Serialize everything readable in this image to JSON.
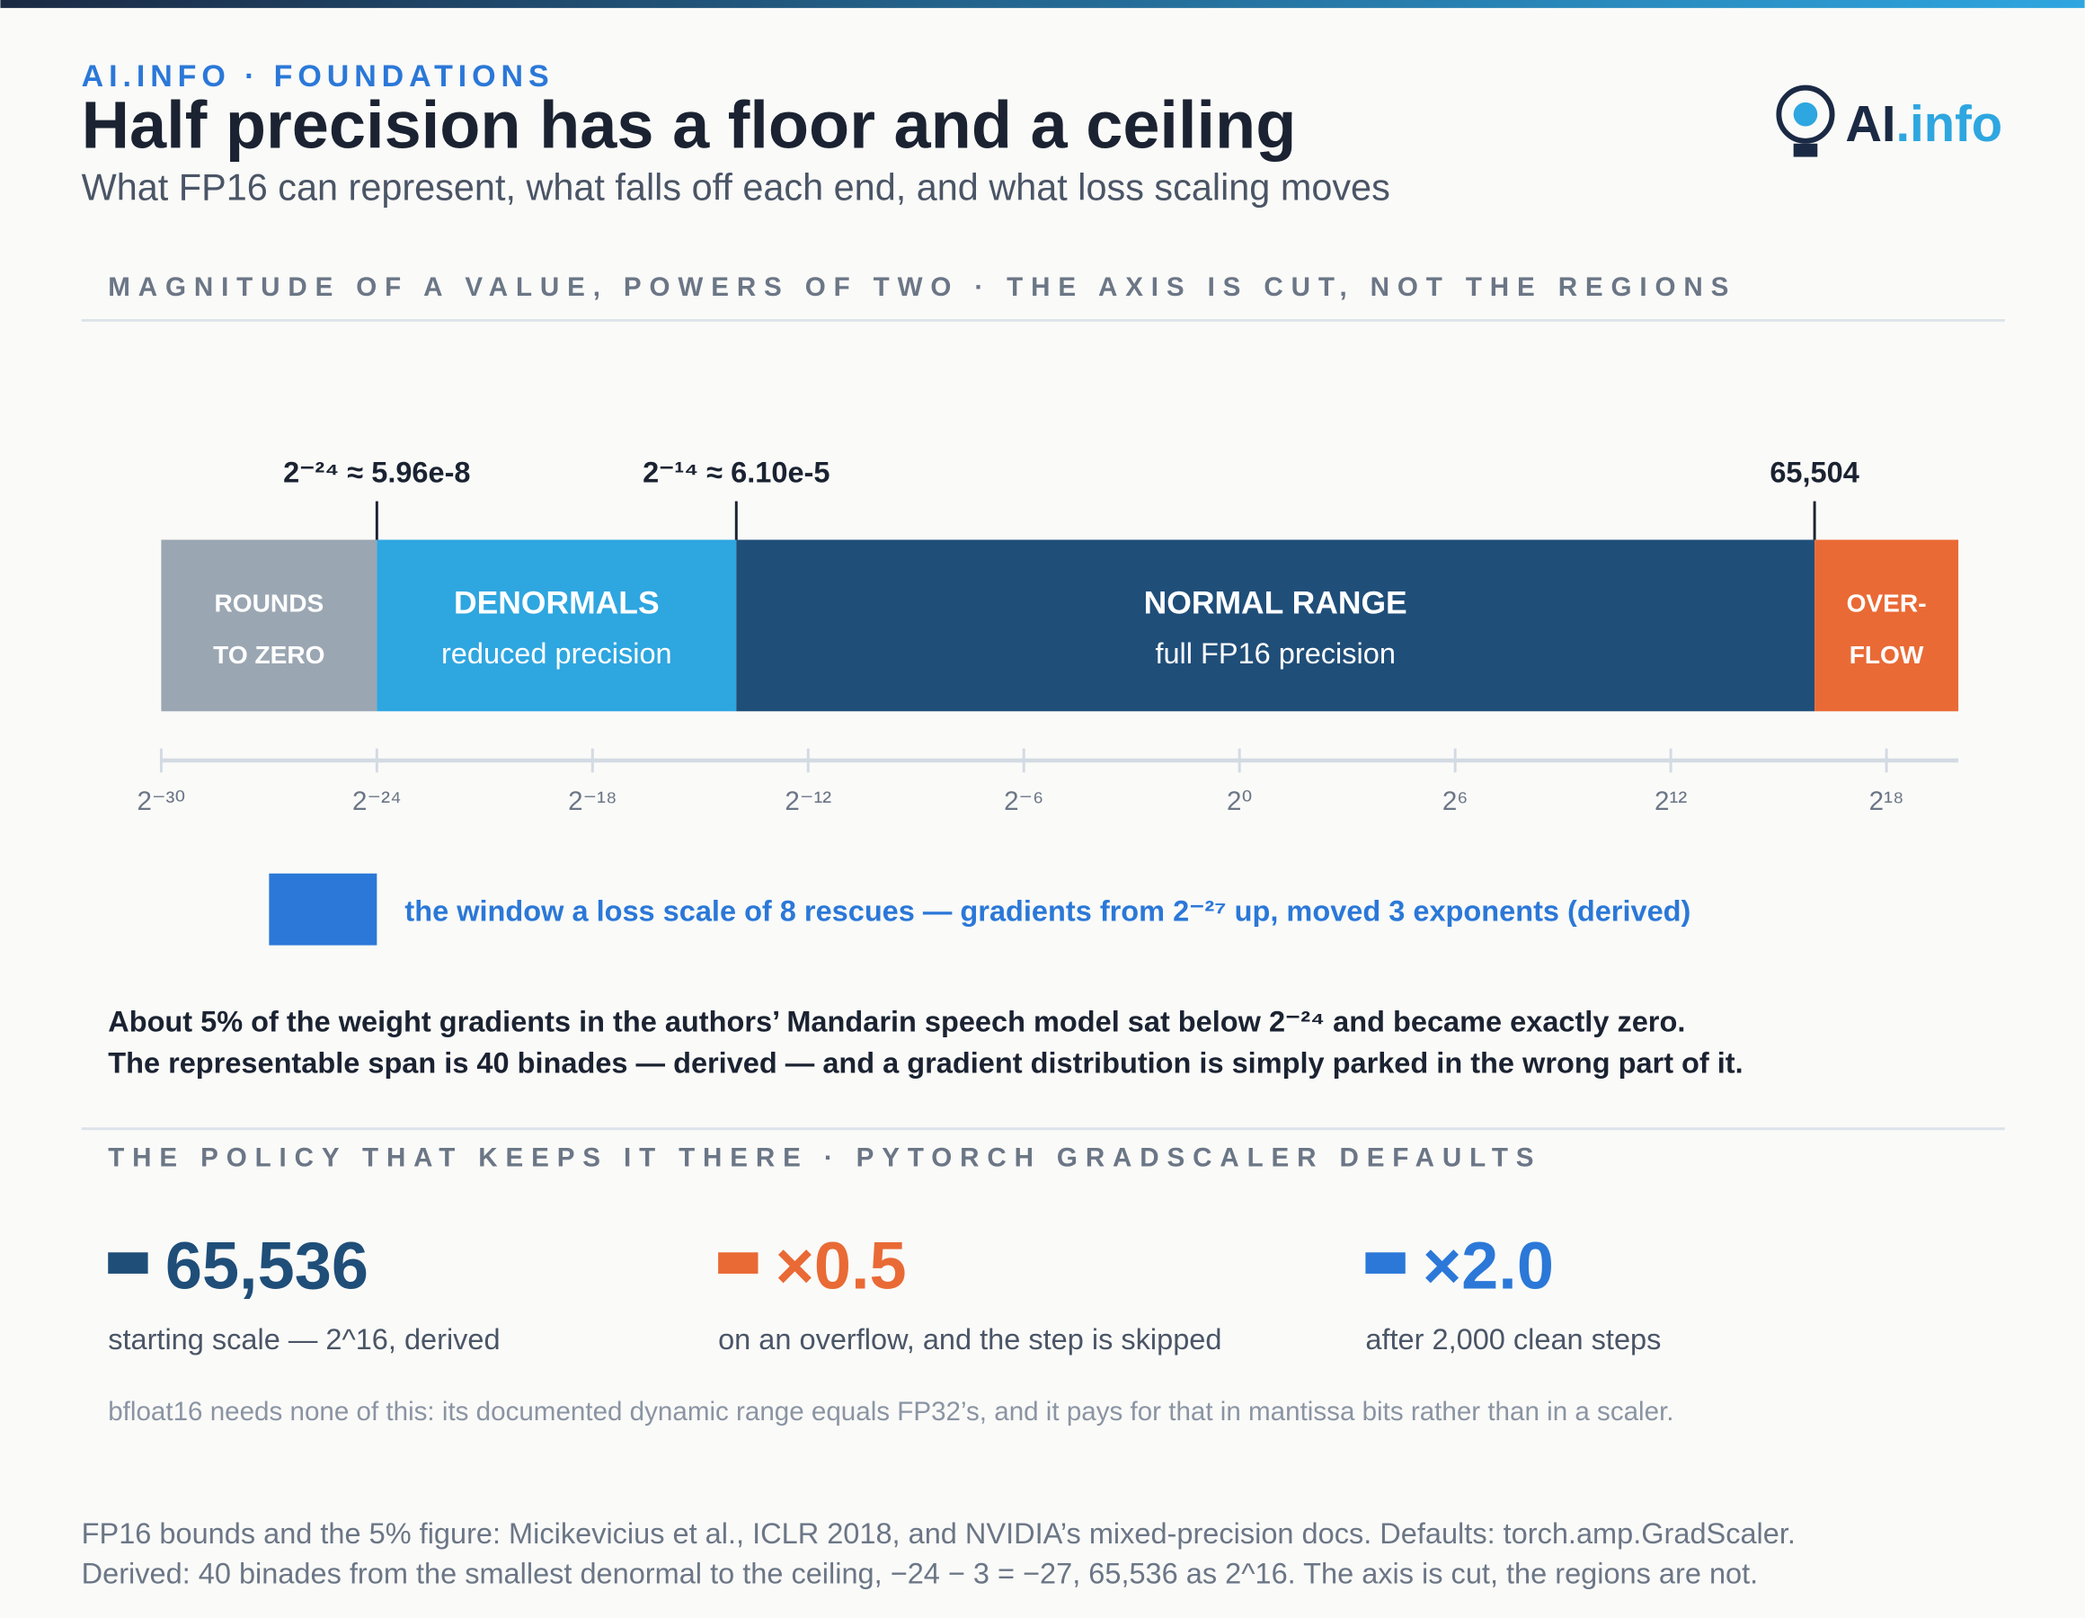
{
  "header": {
    "kicker": "AI.INFO · FOUNDATIONS",
    "title": "Half precision has a floor and a ceiling",
    "subtitle": "What FP16 can represent, what falls off each end, and what loss scaling moves",
    "logo": {
      "main": "AI",
      "accent": ".info"
    }
  },
  "chart_data": {
    "type": "range-strip",
    "title": "MAGNITUDE OF A VALUE, POWERS OF TWO · THE AXIS IS CUT, NOT THE REGIONS",
    "xlim": [
      -30,
      20
    ],
    "xticks": [
      {
        "value": -30,
        "label": "2⁻³⁰"
      },
      {
        "value": -24,
        "label": "2⁻²⁴"
      },
      {
        "value": -18,
        "label": "2⁻¹⁸"
      },
      {
        "value": -12,
        "label": "2⁻¹²"
      },
      {
        "value": -6,
        "label": "2⁻⁶"
      },
      {
        "value": 0,
        "label": "2⁰"
      },
      {
        "value": 6,
        "label": "2⁶"
      },
      {
        "value": 12,
        "label": "2¹²"
      },
      {
        "value": 18,
        "label": "2¹⁸"
      }
    ],
    "regions": [
      {
        "lines": [
          "ROUNDS",
          "TO ZERO"
        ],
        "range": [
          -30,
          -24
        ],
        "color": "#9aa6b2"
      },
      {
        "lines": [
          "DENORMALS",
          "reduced precision"
        ],
        "range": [
          -24,
          -14
        ],
        "color": "#2ea6e0"
      },
      {
        "lines": [
          "NORMAL RANGE",
          "full FP16 precision"
        ],
        "range": [
          -14,
          16
        ],
        "color": "#1f4e79"
      },
      {
        "lines": [
          "OVER-",
          "FLOW"
        ],
        "range": [
          16,
          20
        ],
        "color": "#e96a35"
      }
    ],
    "markers": [
      {
        "value": -24,
        "label": "2⁻²⁴ ≈ 5.96e-8"
      },
      {
        "value": -14,
        "label": "2⁻¹⁴ ≈ 6.10e-5"
      },
      {
        "value": 16,
        "label": "65,504"
      }
    ],
    "window": {
      "range": [
        -27,
        -24
      ],
      "color": "#2b78d8",
      "label": "the window a loss scale of 8 rescues — gradients from 2⁻²⁷ up, moved 3 exponents (derived)"
    }
  },
  "note": [
    "About 5% of the weight gradients in the authors’ Mandarin speech model sat below 2⁻²⁴ and became exactly zero.",
    "The representable span is 40 binades — derived — and a gradient distribution is simply parked in the wrong part of it."
  ],
  "policy": {
    "heading": "THE POLICY THAT KEEPS IT THERE · PYTORCH GRADSCALER DEFAULTS",
    "stats": [
      {
        "value": "65,536",
        "note": "starting scale — 2^16, derived",
        "color": "#1f4e79"
      },
      {
        "value": "×0.5",
        "note": "on an overflow, and the step is skipped",
        "color": "#e96a35"
      },
      {
        "value": "×2.0",
        "note": "after 2,000 clean steps",
        "color": "#2b78d8"
      }
    ],
    "footnote": "bfloat16 needs none of this: its documented dynamic range equals FP32’s, and it pays for that in mantissa bits rather than in a scaler."
  },
  "sources": [
    "FP16 bounds and the 5% figure: Micikevicius et al., ICLR 2018, and NVIDIA’s mixed-precision docs. Defaults: torch.amp.GradScaler.",
    "Derived: 40 binades from the smallest denormal to the ceiling, −24 − 3 = −27, 65,536 as 2^16. The axis is cut, the regions are not."
  ]
}
